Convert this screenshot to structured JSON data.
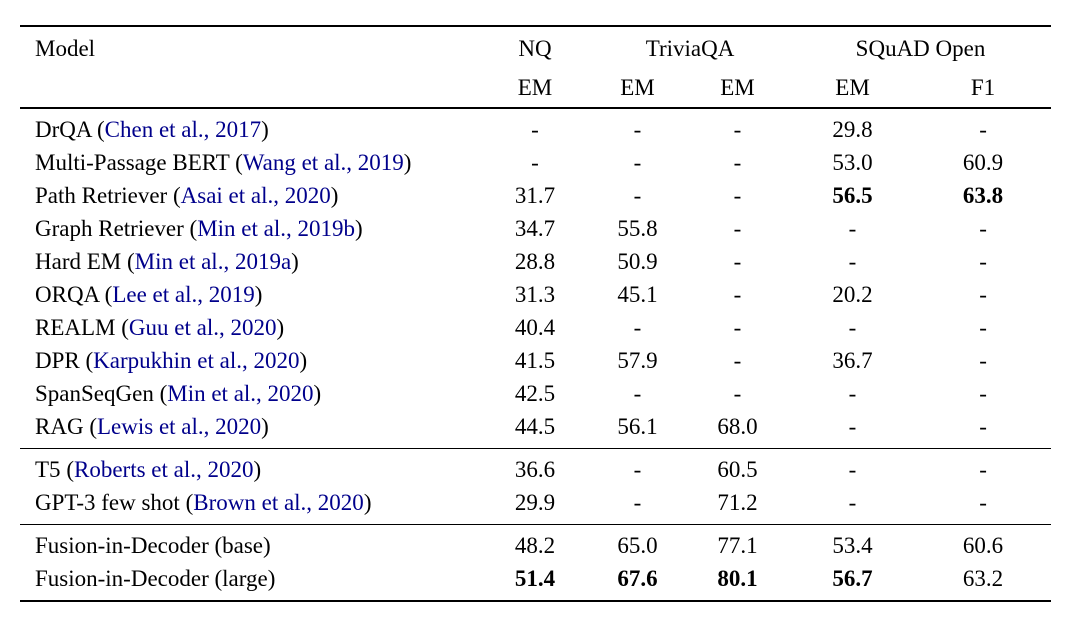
{
  "colors": {
    "citation_link": "#00008B",
    "text": "#000000",
    "background": "#ffffff",
    "rule": "#000000"
  },
  "table": {
    "header": {
      "model_label": "Model",
      "groups": [
        {
          "label": "NQ",
          "span": 1
        },
        {
          "label": "TriviaQA",
          "span": 2
        },
        {
          "label": "SQuAD Open",
          "span": 2
        }
      ],
      "subheaders": [
        "EM",
        "EM",
        "EM",
        "EM",
        "F1"
      ]
    },
    "sections": [
      {
        "rows": [
          {
            "name": "DrQA",
            "citation": "Chen et al., 2017",
            "values": [
              {
                "text": "-"
              },
              {
                "text": "-"
              },
              {
                "text": "-"
              },
              {
                "text": "29.8"
              },
              {
                "text": "-"
              }
            ]
          },
          {
            "name": "Multi-Passage BERT",
            "citation": "Wang et al., 2019",
            "values": [
              {
                "text": "-"
              },
              {
                "text": "-"
              },
              {
                "text": "-"
              },
              {
                "text": "53.0"
              },
              {
                "text": "60.9"
              }
            ]
          },
          {
            "name": "Path Retriever",
            "citation": "Asai et al., 2020",
            "values": [
              {
                "text": "31.7"
              },
              {
                "text": "-"
              },
              {
                "text": "-"
              },
              {
                "text": "56.5",
                "bold": true
              },
              {
                "text": "63.8",
                "bold": true
              }
            ]
          },
          {
            "name": "Graph Retriever",
            "citation": "Min et al., 2019b",
            "values": [
              {
                "text": "34.7"
              },
              {
                "text": "55.8"
              },
              {
                "text": "-"
              },
              {
                "text": "-"
              },
              {
                "text": "-"
              }
            ]
          },
          {
            "name": "Hard EM",
            "citation": "Min et al., 2019a",
            "values": [
              {
                "text": "28.8"
              },
              {
                "text": "50.9"
              },
              {
                "text": "-"
              },
              {
                "text": "-"
              },
              {
                "text": "-"
              }
            ]
          },
          {
            "name": "ORQA",
            "citation": "Lee et al., 2019",
            "values": [
              {
                "text": "31.3"
              },
              {
                "text": "45.1"
              },
              {
                "text": "-"
              },
              {
                "text": "20.2"
              },
              {
                "text": "-"
              }
            ]
          },
          {
            "name": "REALM",
            "citation": "Guu et al., 2020",
            "values": [
              {
                "text": "40.4"
              },
              {
                "text": "-"
              },
              {
                "text": "-"
              },
              {
                "text": "-"
              },
              {
                "text": "-"
              }
            ]
          },
          {
            "name": "DPR",
            "citation": "Karpukhin et al., 2020",
            "values": [
              {
                "text": "41.5"
              },
              {
                "text": "57.9"
              },
              {
                "text": "-"
              },
              {
                "text": "36.7"
              },
              {
                "text": "-"
              }
            ]
          },
          {
            "name": "SpanSeqGen",
            "citation": "Min et al., 2020",
            "values": [
              {
                "text": "42.5"
              },
              {
                "text": "-"
              },
              {
                "text": "-"
              },
              {
                "text": "-"
              },
              {
                "text": "-"
              }
            ]
          },
          {
            "name": "RAG",
            "citation": "Lewis et al., 2020",
            "values": [
              {
                "text": "44.5"
              },
              {
                "text": "56.1"
              },
              {
                "text": "68.0"
              },
              {
                "text": "-"
              },
              {
                "text": "-"
              }
            ]
          }
        ]
      },
      {
        "rows": [
          {
            "name": "T5",
            "citation": "Roberts et al., 2020",
            "values": [
              {
                "text": "36.6"
              },
              {
                "text": "-"
              },
              {
                "text": "60.5"
              },
              {
                "text": "-"
              },
              {
                "text": "-"
              }
            ]
          },
          {
            "name": "GPT-3 few shot",
            "citation": "Brown et al., 2020",
            "values": [
              {
                "text": "29.9"
              },
              {
                "text": "-"
              },
              {
                "text": "71.2"
              },
              {
                "text": "-"
              },
              {
                "text": "-"
              }
            ]
          }
        ]
      },
      {
        "rows": [
          {
            "name": "Fusion-in-Decoder (base)",
            "citation": "",
            "values": [
              {
                "text": "48.2"
              },
              {
                "text": "65.0"
              },
              {
                "text": "77.1"
              },
              {
                "text": "53.4"
              },
              {
                "text": "60.6"
              }
            ]
          },
          {
            "name": "Fusion-in-Decoder (large)",
            "citation": "",
            "values": [
              {
                "text": "51.4",
                "bold": true
              },
              {
                "text": "67.6",
                "bold": true
              },
              {
                "text": "80.1",
                "bold": true
              },
              {
                "text": "56.7",
                "bold": true
              },
              {
                "text": "63.2"
              }
            ]
          }
        ]
      }
    ]
  }
}
